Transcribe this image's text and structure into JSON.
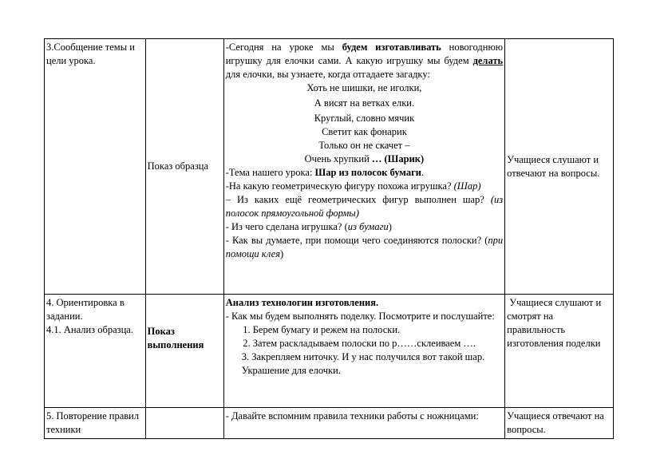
{
  "rows": [
    {
      "stage": "3.Сообщение темы и цели урока.",
      "method": "Показ образца",
      "teacher": {
        "p1_a": "-Сегодня на уроке мы ",
        "p1_b": "будем изготавливать",
        "p1_c": " новогоднюю игрушку для елочки сами. А какую игрушку мы будем ",
        "p1_d": "делать ",
        "p1_e": "для елочки, вы узнаете, когда отгадаете загадку:",
        "riddle": [
          "Хоть не шишки, не иголки,",
          "А висят на ветках елки.",
          "Круглый, словно мячик",
          "Светит как фонарик",
          "Только он не скачет –"
        ],
        "riddle_last_a": "Очень хрупкий ",
        "riddle_last_b": "… (Шарик)",
        "topic_a": "-Тема нашего урока: ",
        "topic_b": "Шар из полосок бумаги",
        "topic_c": ".",
        "q1": "-На какую геометрическую фигуру похожа игрушка? ",
        "a1": "(Шар)",
        "q2": "– Из каких ещё геометрических фигур выполнен шар? ",
        "a2": "(из полосок прямоугольной формы)",
        "q3": "- Из чего сделана игрушка? (",
        "a3": "из бумаги",
        "q3_end": ")",
        "q4": "- Как вы думаете, при помощи чего соединяются полоски? (",
        "a4": "при помощи клея",
        "q4_end": ")"
      },
      "students": "Учащиеся слушают и отвечают на вопросы."
    },
    {
      "stage": "4. Ориентировка в задании.\n4.1. Анализ образца.",
      "method": "Показ выполнения",
      "teacher": {
        "heading": "Анализ технологии изготовления.",
        "intro": "- Как мы будем выполнять поделку. Посмотрите и послушайте:",
        "steps": [
          "Берем бумагу и режем на полоски.",
          "Затем раскладываем полоски по р……склеиваем …."
        ],
        "step3": "3. Закрепляем ниточку. И у нас получился вот такой шар. Украшение для елочки."
      },
      "students": " Учащиеся слушают и смотрят на правильность изготовления поделки"
    },
    {
      "stage": "5. Повторение правил техники",
      "method": "",
      "teacher": "- Давайте вспомним правила техники работы с ножницами:",
      "students": "Учащиеся отвечают на вопросы."
    }
  ]
}
